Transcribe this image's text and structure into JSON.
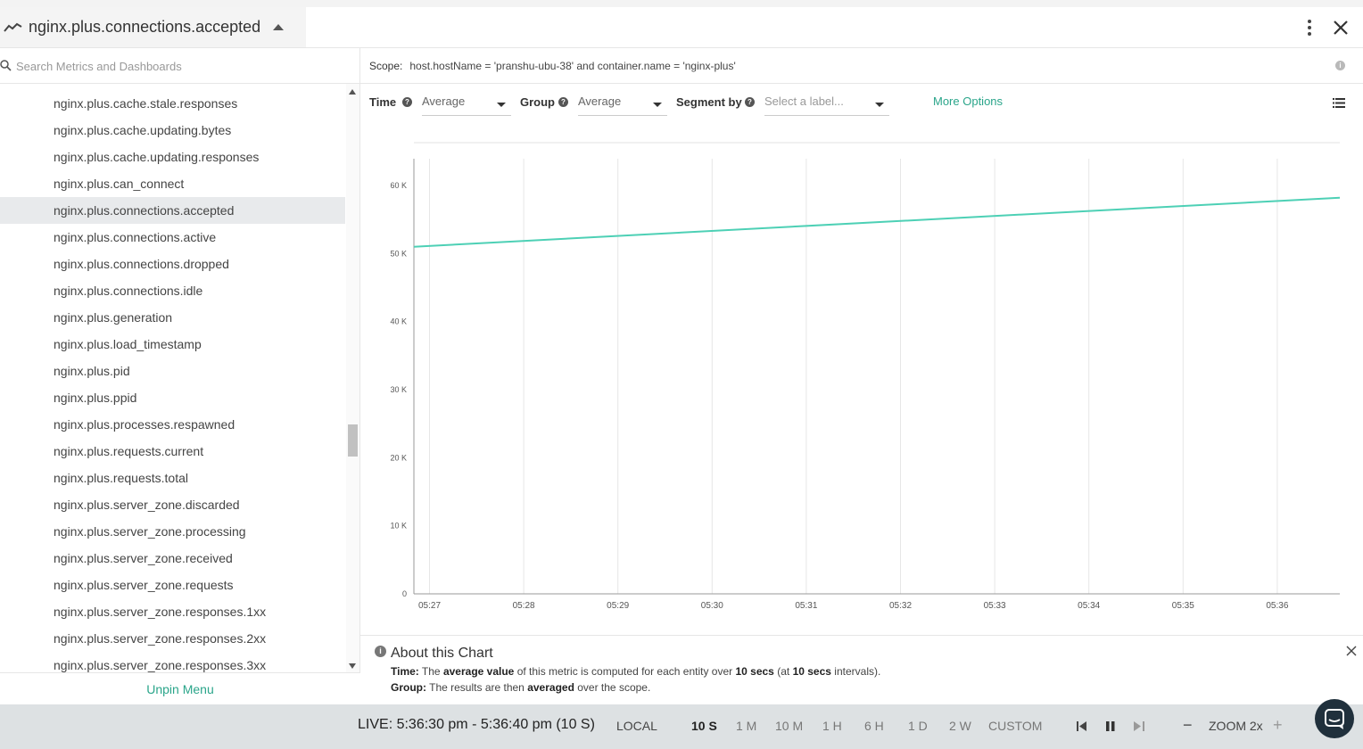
{
  "header": {
    "title": "nginx.plus.connections.accepted"
  },
  "sidebar": {
    "search_placeholder": "Search Metrics and Dashboards",
    "items": [
      {
        "label": "nginx.plus.cache.stale.responses",
        "selected": false
      },
      {
        "label": "nginx.plus.cache.updating.bytes",
        "selected": false
      },
      {
        "label": "nginx.plus.cache.updating.responses",
        "selected": false
      },
      {
        "label": "nginx.plus.can_connect",
        "selected": false
      },
      {
        "label": "nginx.plus.connections.accepted",
        "selected": true
      },
      {
        "label": "nginx.plus.connections.active",
        "selected": false
      },
      {
        "label": "nginx.plus.connections.dropped",
        "selected": false
      },
      {
        "label": "nginx.plus.connections.idle",
        "selected": false
      },
      {
        "label": "nginx.plus.generation",
        "selected": false
      },
      {
        "label": "nginx.plus.load_timestamp",
        "selected": false
      },
      {
        "label": "nginx.plus.pid",
        "selected": false
      },
      {
        "label": "nginx.plus.ppid",
        "selected": false
      },
      {
        "label": "nginx.plus.processes.respawned",
        "selected": false
      },
      {
        "label": "nginx.plus.requests.current",
        "selected": false
      },
      {
        "label": "nginx.plus.requests.total",
        "selected": false
      },
      {
        "label": "nginx.plus.server_zone.discarded",
        "selected": false
      },
      {
        "label": "nginx.plus.server_zone.processing",
        "selected": false
      },
      {
        "label": "nginx.plus.server_zone.received",
        "selected": false
      },
      {
        "label": "nginx.plus.server_zone.requests",
        "selected": false
      },
      {
        "label": "nginx.plus.server_zone.responses.1xx",
        "selected": false
      },
      {
        "label": "nginx.plus.server_zone.responses.2xx",
        "selected": false
      },
      {
        "label": "nginx.plus.server_zone.responses.3xx",
        "selected": false
      }
    ],
    "unpin_label": "Unpin Menu"
  },
  "scope": {
    "label": "Scope:",
    "value": "host.hostName = 'pranshu-ubu-38' and container.name = 'nginx-plus'"
  },
  "controls": {
    "time_label": "Time",
    "time_value": "Average",
    "group_label": "Group",
    "group_value": "Average",
    "segment_label": "Segment by",
    "segment_placeholder": "Select a label...",
    "more_options": "More Options"
  },
  "chart_data": {
    "type": "line",
    "x": [
      "05:26:50",
      "05:36:40"
    ],
    "series": [
      {
        "values": [
          51000,
          58200
        ],
        "color": "#4dd0b5"
      }
    ],
    "xticks": [
      "05:27",
      "05:28",
      "05:29",
      "05:30",
      "05:31",
      "05:32",
      "05:33",
      "05:34",
      "05:35",
      "05:36"
    ],
    "yticks": [
      "0",
      "10 K",
      "20 K",
      "30 K",
      "40 K",
      "50 K",
      "60 K"
    ],
    "ylim": [
      0,
      60000
    ],
    "grid": "vertical"
  },
  "about": {
    "title": "About this Chart",
    "time_label": "Time:",
    "time_pre": "The",
    "time_bold1": "average value",
    "time_mid": "of this metric is computed for each entity over",
    "time_bold2": "10 secs",
    "time_mid2": "(at",
    "time_bold3": "10 secs",
    "time_post": "intervals).",
    "group_label": "Group:",
    "group_pre": "The results are then",
    "group_bold": "averaged",
    "group_post": "over the scope."
  },
  "bottombar": {
    "live": "LIVE: 5:36:30 pm - 5:36:40 pm (10 S)",
    "timezone": "LOCAL",
    "ranges": [
      {
        "label": "10 S",
        "active": true
      },
      {
        "label": "1 M",
        "active": false
      },
      {
        "label": "10 M",
        "active": false
      },
      {
        "label": "1 H",
        "active": false
      },
      {
        "label": "6 H",
        "active": false
      },
      {
        "label": "1 D",
        "active": false
      },
      {
        "label": "2 W",
        "active": false
      },
      {
        "label": "CUSTOM",
        "active": false
      }
    ],
    "zoom": "ZOOM 2x"
  }
}
